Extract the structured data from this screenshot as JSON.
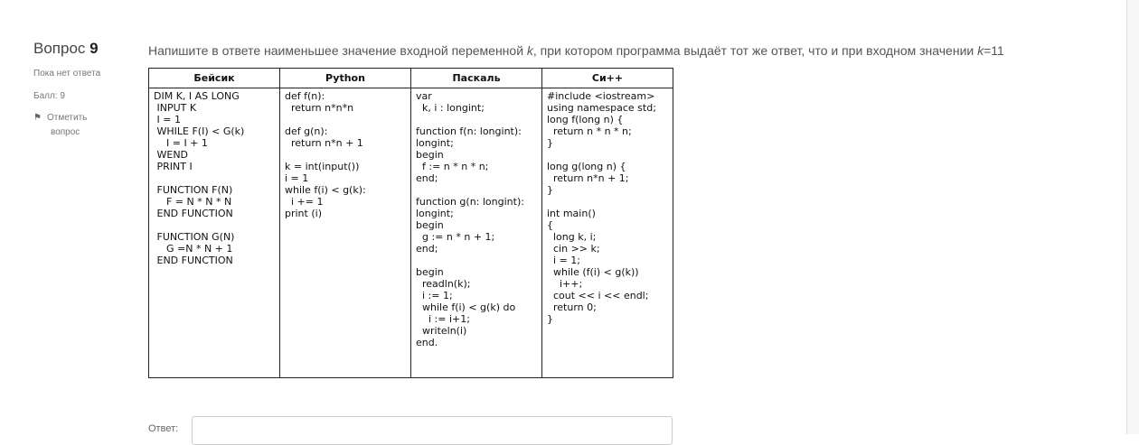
{
  "question": {
    "label": "Вопрос",
    "number": "9",
    "status": "Пока нет ответа",
    "score": "Балл: 9",
    "flag_line1": "Отметить",
    "flag_line2": "вопрос",
    "text_pre": "Напишите в ответе наименьшее значение входной переменной ",
    "var": "k",
    "text_mid": ", при котором программа выдаёт тот же ответ, что и при входном значении ",
    "var2": "k",
    "text_end": "=11"
  },
  "table": {
    "headers": [
      "Бейсик",
      "Python",
      "Паскаль",
      "Си++"
    ],
    "cells": [
      "DIM K, I AS LONG\n INPUT K\n I = 1\n WHILE F(I) < G(k)\n    I = I + 1\n WEND\n PRINT I\n\n FUNCTION F(N)\n    F = N * N * N\n END FUNCTION\n\n FUNCTION G(N)\n    G =N * N + 1\n END FUNCTION",
      "def f(n):\n  return n*n*n\n\ndef g(n):\n  return n*n + 1\n\nk = int(input())\ni = 1\nwhile f(i) < g(k):\n  i += 1\nprint (i)",
      "var\n  k, i : longint;\n\nfunction f(n: longint):\nlongint;\nbegin\n  f := n * n * n;\nend;\n\nfunction g(n: longint):\nlongint;\nbegin\n  g := n * n + 1;\nend;\n\nbegin\n  readln(k);\n  i := 1;\n  while f(i) < g(k) do\n    i := i+1;\n  writeln(i)\nend.",
      "#include <iostream>\nusing namespace std;\nlong f(long n) {\n  return n * n * n;\n}\n\nlong g(long n) {\n  return n*n + 1;\n}\n\nint main()\n{\n  long k, i;\n  cin >> k;\n  i = 1;\n  while (f(i) < g(k))\n    i++;\n  cout << i << endl;\n  return 0;\n}"
    ]
  },
  "answer": {
    "label": "Ответ:",
    "value": ""
  }
}
